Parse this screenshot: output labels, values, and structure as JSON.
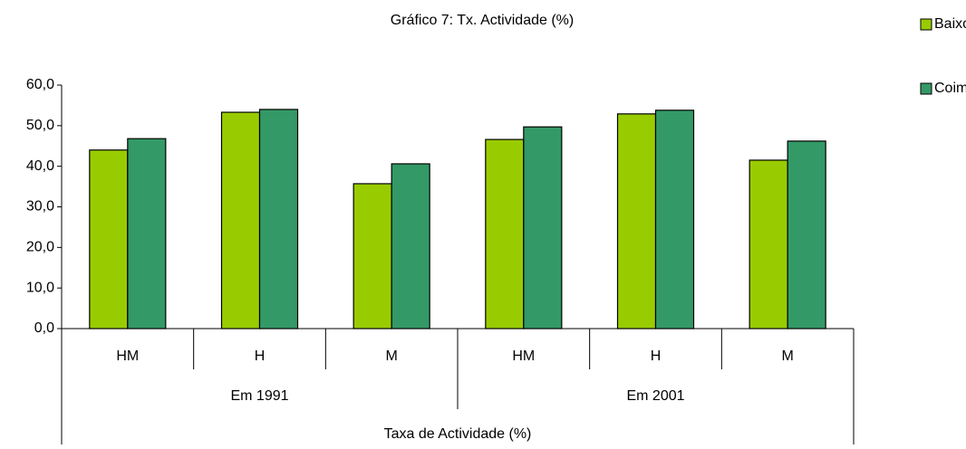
{
  "chart_data": {
    "type": "bar",
    "title": "Gráfico 7: Tx. Actividade (%)",
    "categories": [
      "HM",
      "H",
      "M",
      "HM",
      "H",
      "M"
    ],
    "groups": [
      "Em 1991",
      "Em 2001"
    ],
    "xlabel": "Taxa de Actividade (%)",
    "series": [
      {
        "name": "Baixo Mondego",
        "color": "#99cc00",
        "values": [
          44.0,
          53.3,
          35.7,
          46.6,
          52.9,
          41.5
        ]
      },
      {
        "name": "Coimbra",
        "color": "#339966",
        "values": [
          46.8,
          54.0,
          40.6,
          49.7,
          53.8,
          46.2
        ]
      }
    ],
    "ylim": [
      0,
      60
    ],
    "yticks": [
      {
        "value": 0,
        "label": "0,0"
      },
      {
        "value": 10,
        "label": "10,0"
      },
      {
        "value": 20,
        "label": "20,0"
      },
      {
        "value": 30,
        "label": "30,0"
      },
      {
        "value": 40,
        "label": "40,0"
      },
      {
        "value": 50,
        "label": "50,0"
      },
      {
        "value": 60,
        "label": "60,0"
      }
    ],
    "legend": "top-right"
  }
}
